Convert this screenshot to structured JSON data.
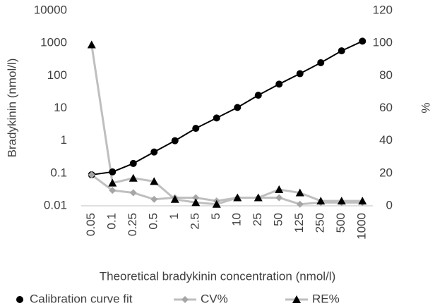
{
  "chart_data": {
    "type": "line",
    "x_label": "Theoretical bradykinin concentration (nmol/l)",
    "y_label": "Bradykinin  (nmol/l)",
    "y2_label": "%",
    "categories": [
      "0.05",
      "0.1",
      "0.25",
      "0.5",
      "1",
      "2.5",
      "5",
      "10",
      "25",
      "50",
      "125",
      "250",
      "500",
      "1000"
    ],
    "ylim": [
      0.01,
      10000
    ],
    "yticks": [
      0.01,
      0.1,
      1,
      10,
      100,
      1000,
      10000
    ],
    "ylog": true,
    "y2lim": [
      0,
      120
    ],
    "y2ticks": [
      0,
      20,
      40,
      60,
      80,
      100,
      120
    ],
    "grid": false,
    "legend": "bottom",
    "series": [
      {
        "name": "Calibration curve fit",
        "color": "#000000",
        "line_color": "#000000",
        "marker": "circle",
        "values": [
          0.09,
          0.11,
          0.2,
          0.45,
          1,
          2.4,
          5,
          10.5,
          25,
          55,
          115,
          250,
          580,
          1150
        ]
      },
      {
        "name": "CV%",
        "color": "#a6a6a6",
        "line_color": "#bfbfbf",
        "marker": "diamond",
        "axis": "y2",
        "values": [
          19,
          9.5,
          8,
          4,
          5,
          5,
          3,
          5,
          5,
          5,
          1,
          2,
          2,
          2
        ]
      },
      {
        "name": "RE%",
        "color": "#000000",
        "line_color": "#bfbfbf",
        "marker": "triangle",
        "axis": "y2",
        "values": [
          99,
          14,
          17,
          15,
          4,
          2,
          1,
          5,
          5,
          10,
          8,
          3,
          3,
          3
        ]
      }
    ]
  }
}
